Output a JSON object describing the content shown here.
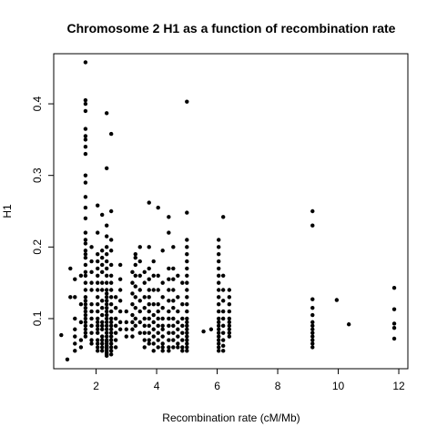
{
  "chart_data": {
    "type": "scatter",
    "title": "Chromosome 2 H1 as a function of recombination rate",
    "xlabel": "Recombination rate (cM/Mb)",
    "ylabel": "H1",
    "xlim": [
      0.6,
      12.3
    ],
    "ylim": [
      0.03,
      0.47
    ],
    "xticks": [
      2,
      4,
      6,
      8,
      10,
      12
    ],
    "yticks": [
      0.1,
      0.2,
      0.3,
      0.4
    ],
    "grid": false,
    "point_color": "#000000",
    "clusters": [
      {
        "x": 0.85,
        "values": [
          0.077
        ]
      },
      {
        "x": 1.05,
        "values": [
          0.043
        ]
      },
      {
        "x": 1.15,
        "values": [
          0.17,
          0.13
        ]
      },
      {
        "x": 1.3,
        "values": [
          0.155,
          0.13,
          0.1,
          0.085,
          0.075,
          0.065,
          0.055
        ]
      },
      {
        "x": 1.5,
        "values": [
          0.16,
          0.12,
          0.095,
          0.07,
          0.06
        ]
      },
      {
        "x": 1.65,
        "values": [
          0.458,
          0.405,
          0.4,
          0.39,
          0.365,
          0.355,
          0.35,
          0.34,
          0.33,
          0.3,
          0.29,
          0.27,
          0.255,
          0.24,
          0.22,
          0.21,
          0.205,
          0.195,
          0.19,
          0.185,
          0.175,
          0.165,
          0.16,
          0.15,
          0.14,
          0.13,
          0.125,
          0.12,
          0.115,
          0.11,
          0.105,
          0.1,
          0.095,
          0.09,
          0.085,
          0.08,
          0.075
        ]
      },
      {
        "x": 1.85,
        "values": [
          0.2,
          0.18,
          0.165,
          0.15,
          0.14,
          0.12,
          0.11,
          0.1,
          0.09,
          0.08,
          0.07,
          0.065
        ]
      },
      {
        "x": 2.05,
        "values": [
          0.258,
          0.22,
          0.19,
          0.18,
          0.17,
          0.16,
          0.15,
          0.14,
          0.13,
          0.12,
          0.11,
          0.1,
          0.095,
          0.09,
          0.085,
          0.08,
          0.07,
          0.065,
          0.06,
          0.055
        ]
      },
      {
        "x": 2.2,
        "values": [
          0.245,
          0.195,
          0.185,
          0.175,
          0.165,
          0.15,
          0.14,
          0.125,
          0.115,
          0.105,
          0.095,
          0.09,
          0.085,
          0.075,
          0.07,
          0.065,
          0.06,
          0.055
        ]
      },
      {
        "x": 2.35,
        "values": [
          0.387,
          0.31,
          0.23,
          0.215,
          0.2,
          0.19,
          0.18,
          0.17,
          0.16,
          0.15,
          0.14,
          0.135,
          0.13,
          0.125,
          0.12,
          0.115,
          0.11,
          0.105,
          0.1,
          0.095,
          0.09,
          0.085,
          0.08,
          0.075,
          0.07,
          0.068,
          0.065,
          0.062,
          0.06,
          0.058,
          0.055,
          0.052,
          0.05,
          0.048
        ]
      },
      {
        "x": 2.5,
        "values": [
          0.358,
          0.25,
          0.21,
          0.195,
          0.175,
          0.16,
          0.15,
          0.14,
          0.13,
          0.12,
          0.11,
          0.1,
          0.095,
          0.09,
          0.085,
          0.08,
          0.075,
          0.07,
          0.065,
          0.06,
          0.055,
          0.05
        ]
      },
      {
        "x": 2.65,
        "values": [
          0.13,
          0.115,
          0.1,
          0.09,
          0.08,
          0.07,
          0.06
        ]
      },
      {
        "x": 2.8,
        "values": [
          0.175,
          0.155,
          0.14,
          0.125,
          0.11,
          0.095,
          0.085
        ]
      },
      {
        "x": 3.0,
        "values": [
          0.11,
          0.095,
          0.085,
          0.075
        ]
      },
      {
        "x": 3.2,
        "values": [
          0.165,
          0.15,
          0.135,
          0.12,
          0.105,
          0.095,
          0.085,
          0.075
        ]
      },
      {
        "x": 3.3,
        "values": [
          0.19,
          0.185,
          0.175,
          0.16,
          0.145,
          0.13,
          0.115,
          0.1,
          0.09
        ]
      },
      {
        "x": 3.45,
        "values": [
          0.2,
          0.18,
          0.16,
          0.14,
          0.125,
          0.11,
          0.095,
          0.08
        ]
      },
      {
        "x": 3.6,
        "values": [
          0.165,
          0.15,
          0.13,
          0.115,
          0.1,
          0.09,
          0.08,
          0.07,
          0.06
        ]
      },
      {
        "x": 3.75,
        "values": [
          0.262,
          0.2,
          0.17,
          0.155,
          0.14,
          0.13,
          0.12,
          0.11,
          0.1,
          0.09,
          0.08,
          0.07,
          0.065
        ]
      },
      {
        "x": 3.9,
        "values": [
          0.18,
          0.16,
          0.14,
          0.12,
          0.105,
          0.095,
          0.085,
          0.075,
          0.065,
          0.055
        ]
      },
      {
        "x": 4.05,
        "values": [
          0.255,
          0.16,
          0.14,
          0.12,
          0.11,
          0.1,
          0.09,
          0.08,
          0.07,
          0.06
        ]
      },
      {
        "x": 4.2,
        "values": [
          0.195,
          0.15,
          0.13,
          0.115,
          0.1,
          0.09,
          0.085,
          0.075,
          0.065,
          0.06,
          0.055
        ]
      },
      {
        "x": 4.4,
        "values": [
          0.242,
          0.22,
          0.17,
          0.155,
          0.14,
          0.125,
          0.11,
          0.1,
          0.09,
          0.08,
          0.07,
          0.06,
          0.055
        ]
      },
      {
        "x": 4.55,
        "values": [
          0.2,
          0.17,
          0.155,
          0.14,
          0.125,
          0.115,
          0.1,
          0.09,
          0.08,
          0.07,
          0.06
        ]
      },
      {
        "x": 4.7,
        "values": [
          0.16,
          0.13,
          0.11,
          0.095,
          0.085,
          0.075,
          0.065,
          0.06
        ]
      },
      {
        "x": 4.85,
        "values": [
          0.15,
          0.12,
          0.1,
          0.09,
          0.08,
          0.07,
          0.06,
          0.055
        ]
      },
      {
        "x": 5.0,
        "values": [
          0.403,
          0.248,
          0.21,
          0.2,
          0.19,
          0.18,
          0.17,
          0.16,
          0.15,
          0.14,
          0.13,
          0.12,
          0.11,
          0.1,
          0.095,
          0.09,
          0.085,
          0.08,
          0.075,
          0.07,
          0.065,
          0.06,
          0.055
        ]
      },
      {
        "x": 5.55,
        "values": [
          0.082
        ]
      },
      {
        "x": 5.8,
        "values": [
          0.085
        ]
      },
      {
        "x": 6.05,
        "values": [
          0.21,
          0.2,
          0.19,
          0.18,
          0.17,
          0.16,
          0.15,
          0.14,
          0.13,
          0.12,
          0.11,
          0.1,
          0.095,
          0.09,
          0.085,
          0.08,
          0.075,
          0.07,
          0.065,
          0.06,
          0.055
        ]
      },
      {
        "x": 6.2,
        "values": [
          0.242,
          0.16,
          0.14,
          0.125,
          0.11,
          0.1,
          0.09,
          0.08,
          0.07,
          0.062,
          0.055
        ]
      },
      {
        "x": 6.4,
        "values": [
          0.14,
          0.13,
          0.12,
          0.11,
          0.1,
          0.095,
          0.09,
          0.085,
          0.08,
          0.075
        ]
      },
      {
        "x": 9.15,
        "values": [
          0.25,
          0.23,
          0.127,
          0.115,
          0.105,
          0.095,
          0.09,
          0.085,
          0.08,
          0.075,
          0.07,
          0.065,
          0.06
        ]
      },
      {
        "x": 9.95,
        "values": [
          0.126
        ]
      },
      {
        "x": 10.35,
        "values": [
          0.092
        ]
      },
      {
        "x": 11.85,
        "values": [
          0.143,
          0.113,
          0.093,
          0.087,
          0.072
        ]
      }
    ]
  }
}
